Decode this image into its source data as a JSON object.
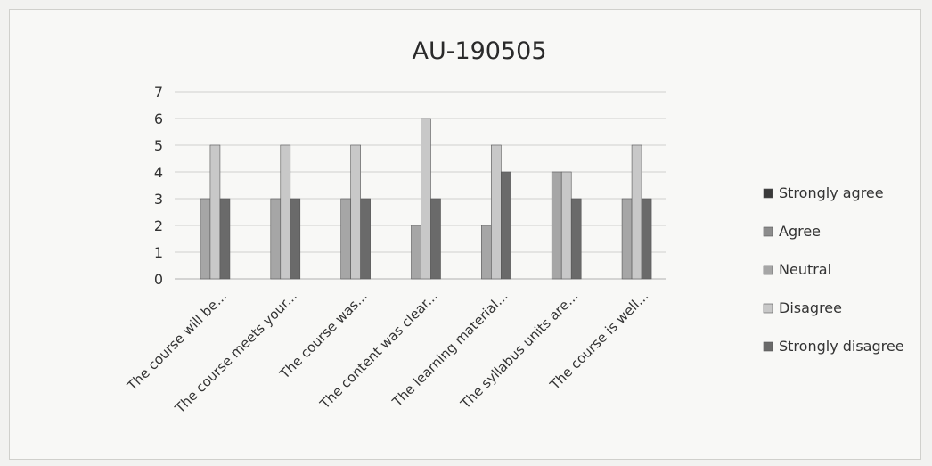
{
  "chart_data": {
    "type": "bar",
    "title": "AU-190505",
    "xlabel": "",
    "ylabel": "",
    "ylim": [
      0,
      7
    ],
    "yticks": [
      0,
      1,
      2,
      3,
      4,
      5,
      6,
      7
    ],
    "grid": true,
    "legend_position": "right",
    "categories": [
      "The course will be...",
      "The course meets your...",
      "The course was...",
      "The content was clear...",
      "The learning material...",
      "The syllabus units are...",
      "The course is well..."
    ],
    "series": [
      {
        "name": "Strongly agree",
        "color": "#3a3a3a",
        "values": [
          0,
          0,
          0,
          0,
          0,
          0,
          0
        ]
      },
      {
        "name": "Agree",
        "color": "#8c8c8c",
        "values": [
          0,
          0,
          0,
          0,
          0,
          0,
          0
        ]
      },
      {
        "name": "Neutral",
        "color": "#a6a6a6",
        "values": [
          3,
          3,
          3,
          2,
          2,
          4,
          3
        ]
      },
      {
        "name": "Disagree",
        "color": "#c8c8c8",
        "values": [
          5,
          5,
          5,
          6,
          5,
          4,
          5
        ]
      },
      {
        "name": "Strongly disagree",
        "color": "#6a6a6a",
        "values": [
          3,
          3,
          3,
          3,
          4,
          3,
          3
        ]
      }
    ]
  }
}
